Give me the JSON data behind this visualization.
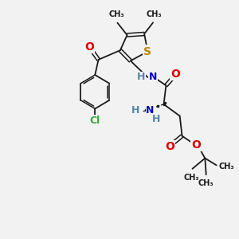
{
  "bg_color": "#f2f2f2",
  "bond_color": "#1a1a1a",
  "atoms": {
    "S": {
      "color": "#b8860b",
      "fontsize": 10
    },
    "O": {
      "color": "#dd0000",
      "fontsize": 10
    },
    "N": {
      "color": "#0000cc",
      "fontsize": 9
    },
    "Cl": {
      "color": "#33aa33",
      "fontsize": 9
    },
    "H_teal": {
      "color": "#5588aa",
      "fontsize": 9
    },
    "C": {
      "color": "#1a1a1a",
      "fontsize": 8
    }
  },
  "figsize": [
    3.0,
    3.0
  ],
  "dpi": 100,
  "xlim": [
    0,
    10
  ],
  "ylim": [
    0,
    10
  ]
}
